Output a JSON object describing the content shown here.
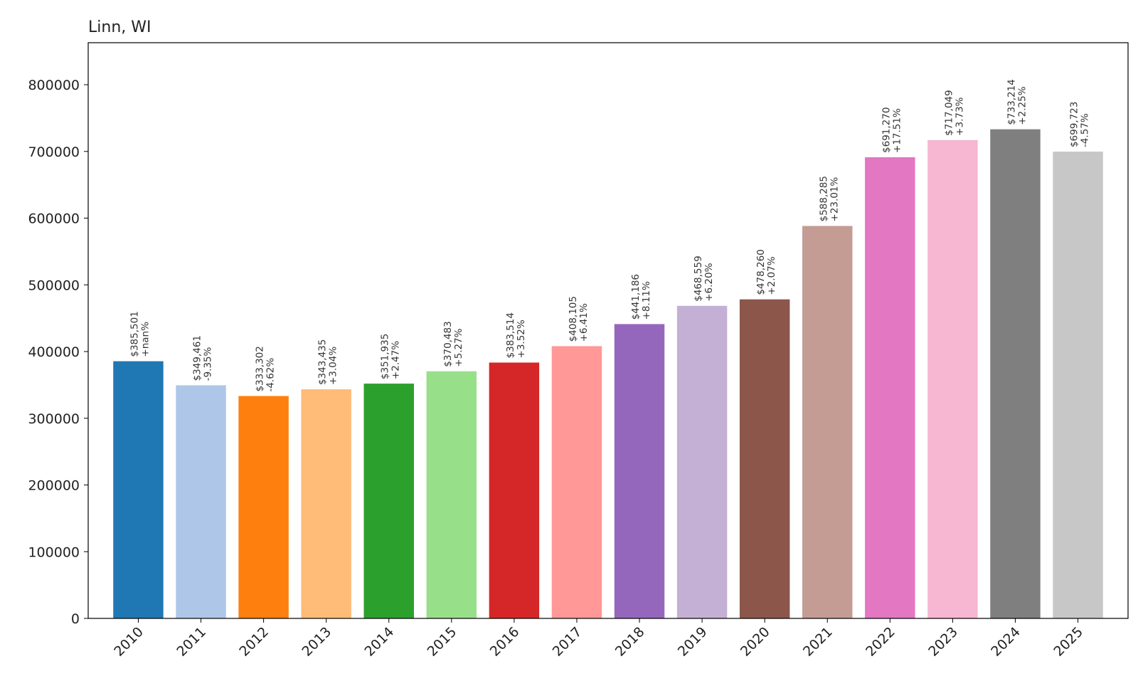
{
  "chart_data": {
    "type": "bar",
    "title": "Linn, WI",
    "xlabel": "",
    "ylabel": "",
    "categories": [
      "2010",
      "2011",
      "2012",
      "2013",
      "2014",
      "2015",
      "2016",
      "2017",
      "2018",
      "2019",
      "2020",
      "2021",
      "2022",
      "2023",
      "2024",
      "2025"
    ],
    "values": [
      385501,
      349461,
      333302,
      343435,
      351935,
      370483,
      383514,
      408105,
      441186,
      468559,
      478260,
      588285,
      691270,
      717049,
      733214,
      699723
    ],
    "value_labels": [
      "$385,501",
      "$349,461",
      "$333,302",
      "$343,435",
      "$351,935",
      "$370,483",
      "$383,514",
      "$408,105",
      "$441,186",
      "$468,559",
      "$478,260",
      "$588,285",
      "$691,270",
      "$717,049",
      "$733,214",
      "$699,723"
    ],
    "change_labels": [
      "+nan%",
      "-9.35%",
      "-4.62%",
      "+3.04%",
      "+2.47%",
      "+5.27%",
      "+3.52%",
      "+6.41%",
      "+8.11%",
      "+6.20%",
      "+2.07%",
      "+23.01%",
      "+17.51%",
      "+3.73%",
      "+2.25%",
      "-4.57%"
    ],
    "colors": [
      "#1f77b4",
      "#aec7e8",
      "#ff7f0e",
      "#ffbb78",
      "#2ca02c",
      "#98df8a",
      "#d62728",
      "#ff9896",
      "#9467bd",
      "#c5b0d5",
      "#8c564b",
      "#c49c94",
      "#e377c2",
      "#f7b6d2",
      "#7f7f7f",
      "#c7c7c7"
    ],
    "y_ticks": [
      0,
      100000,
      200000,
      300000,
      400000,
      500000,
      600000,
      700000,
      800000
    ],
    "y_tick_labels": [
      "0",
      "100000",
      "200000",
      "300000",
      "400000",
      "500000",
      "600000",
      "700000",
      "800000"
    ],
    "ylim": [
      0,
      863000
    ],
    "grid": false,
    "legend": "none"
  }
}
